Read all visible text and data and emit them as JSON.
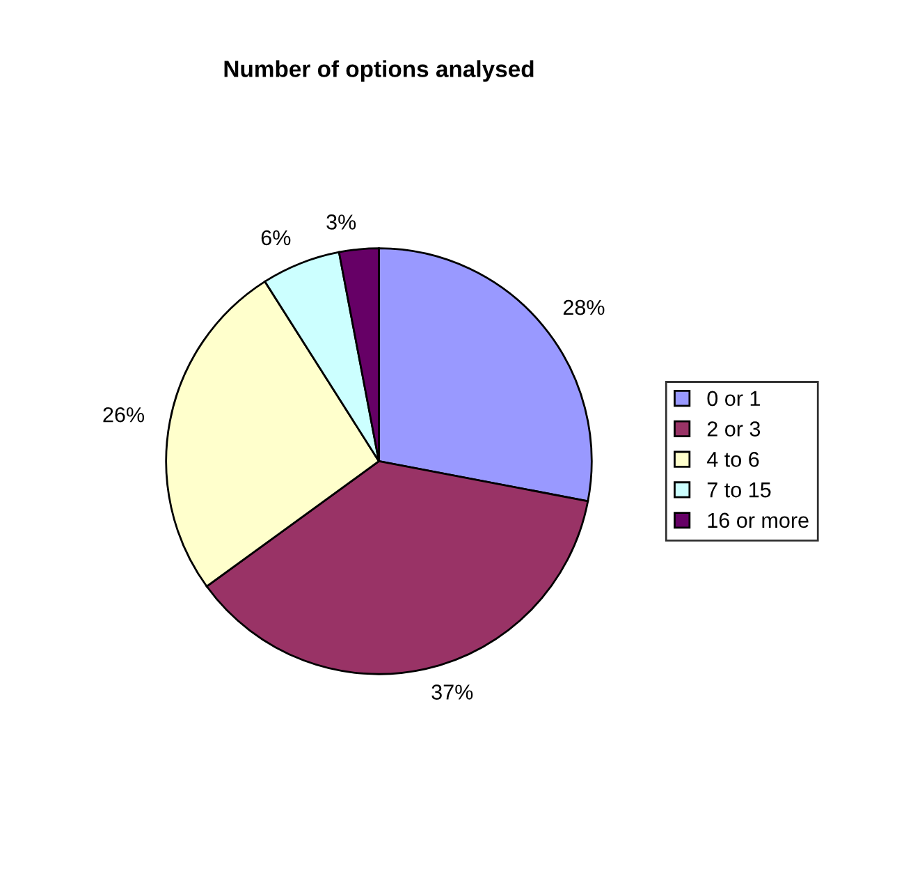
{
  "chart_data": {
    "type": "pie",
    "title": "Number of options analysed",
    "categories": [
      "0 or 1",
      "2 or 3",
      "4 to 6",
      "7 to 15",
      "16 or more"
    ],
    "values": [
      28,
      37,
      26,
      6,
      3
    ],
    "colors": [
      "#9999ff",
      "#993366",
      "#ffffcc",
      "#ccffff",
      "#660066"
    ],
    "value_labels": [
      "28%",
      "37%",
      "26%",
      "6%",
      "3%"
    ],
    "legend": "right"
  }
}
